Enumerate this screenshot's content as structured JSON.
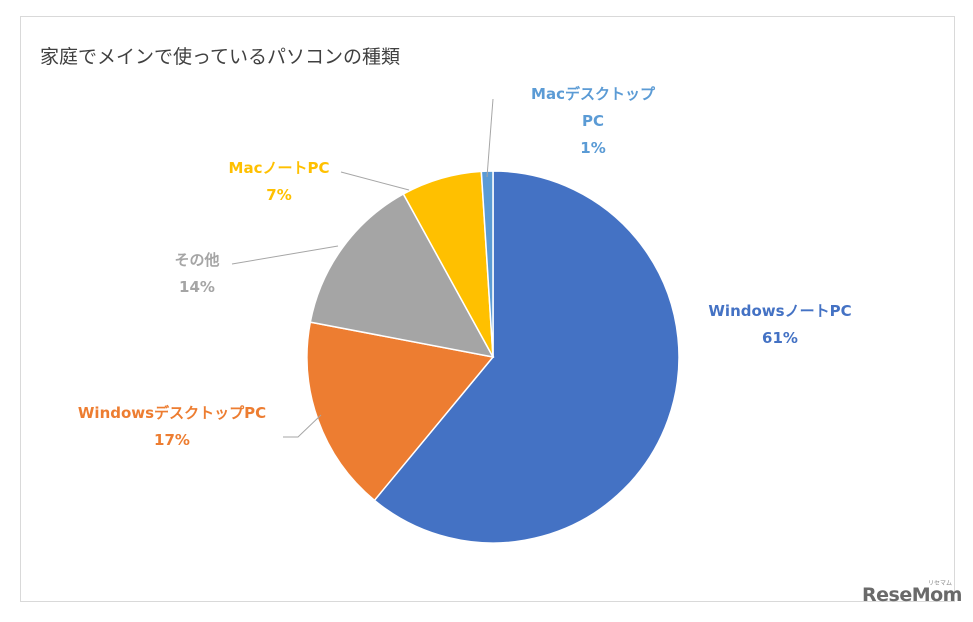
{
  "chart_data": {
    "type": "pie",
    "title": "家庭でメインで使っているパソコンの種類",
    "slices": [
      {
        "label": "Windowsノート PC",
        "value": 61,
        "value_label": "61%",
        "color": "#4472C4"
      },
      {
        "label": "Windowsデスクトップ PC",
        "value": 17,
        "value_label": "17%",
        "color": "#ED7D31"
      },
      {
        "label": "その他",
        "value": 14,
        "value_label": "14%",
        "color": "#A5A5A5"
      },
      {
        "label": "Macノート PC",
        "value": 7,
        "value_label": "7%",
        "color": "#FFC000"
      },
      {
        "label": "Macデスクトップ PC",
        "value": 1,
        "value_label": "1%",
        "color": "#5B9BD5"
      }
    ],
    "label_lines": [
      {
        "name": "Windowsノート",
        "suffix": "PC"
      },
      {
        "name": "Windowsデスクトップ",
        "suffix": "PC"
      },
      {
        "name": "その他",
        "suffix": ""
      },
      {
        "name": "Macノート",
        "suffix": "PC"
      },
      {
        "name": "Macデスクトップ",
        "suffix": "PC"
      }
    ]
  },
  "watermark": {
    "text": "ReseMom",
    "sub": "リセマム"
  }
}
